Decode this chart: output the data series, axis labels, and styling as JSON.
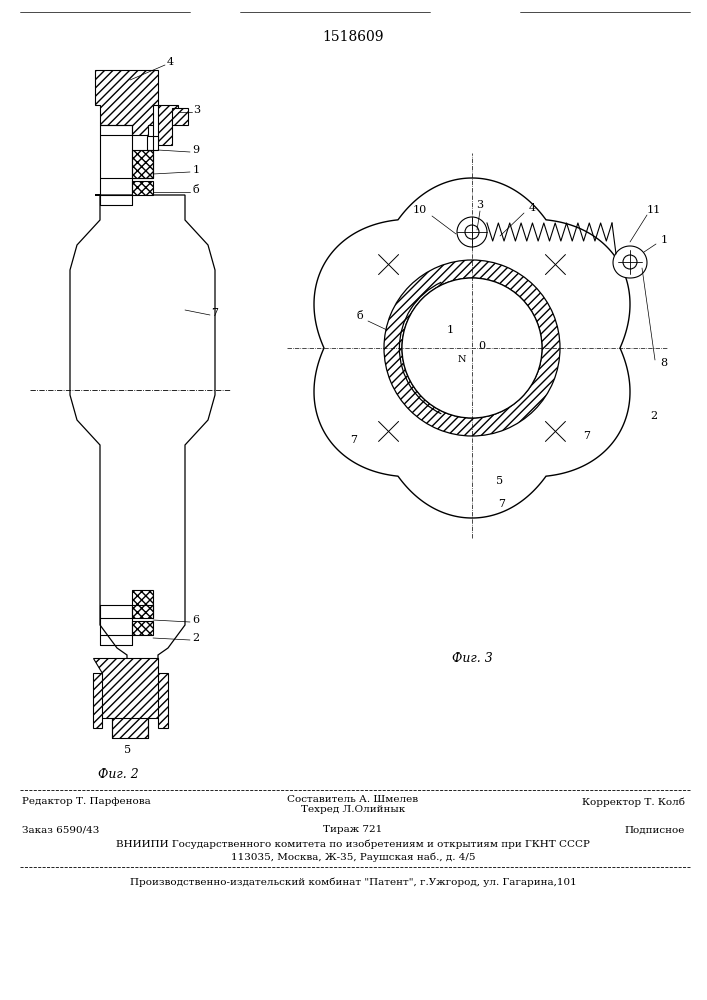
{
  "patent_number": "1518609",
  "fig2_label": "Фиг. 2",
  "fig3_label": "Фиг. 3",
  "footer_line1_left": "Редактор Т. Парфенова",
  "footer_line1_center_a": "Составитель А. Шмелев",
  "footer_line1_center_b": "Техред Л.Олийнык",
  "footer_line1_right": "Корректор Т. Колб",
  "footer_line2_left": "Заказ 6590/43",
  "footer_line2_center": "Тираж 721",
  "footer_line2_right": "Подписное",
  "footer_line3": "ВНИИПИ Государственного комитета по изобретениям и открытиям при ГКНТ СССР",
  "footer_line4": "113035, Москва, Ж-35, Раушская наб., д. 4/5",
  "footer_line5": "Производственно-издательский комбинат \"Патент\", г.Ужгород, ул. Гагарина,101",
  "bg_color": "#ffffff",
  "line_color": "#000000"
}
